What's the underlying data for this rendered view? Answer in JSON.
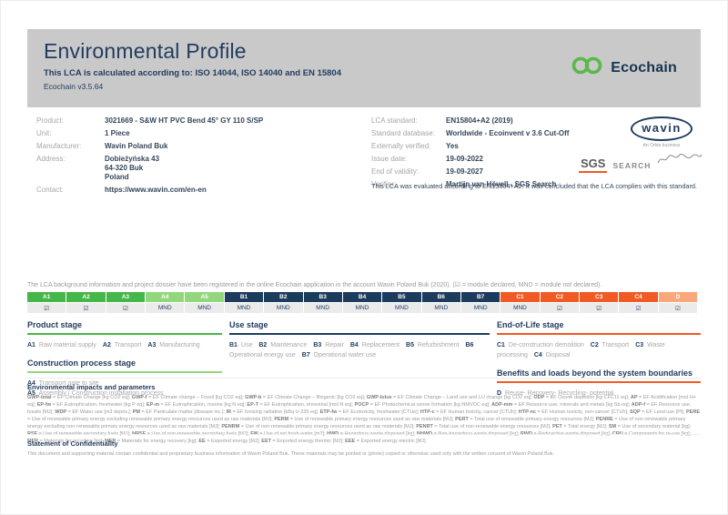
{
  "colors": {
    "green": "#45b649",
    "lightgreen": "#93d77d",
    "navy": "#1c3c5e",
    "orange": "#f15a24",
    "lightorange": "#f9a87c",
    "brand_navy": "#223c5f",
    "ecochain_green": "#5cb84b",
    "banner_gray": "#c9c9c9"
  },
  "header": {
    "title": "Environmental Profile",
    "subtitle": "This LCA is calculated according to: ISO 14044, ISO 14040 and EN 15804",
    "version": "Ecochain v3.5.64",
    "brand": "Ecochain"
  },
  "product_info": {
    "rows": [
      {
        "label": "Product:",
        "value": "3021669 - S&W HT PVC Bend 45° GY 110 S/SP"
      },
      {
        "label": "Unit:",
        "value": "1 Piece"
      },
      {
        "label": "Manufacturer:",
        "value": "Wavin Poland Buk"
      },
      {
        "label": "Address:",
        "value": "Dobieżyńska 43\n64-320 Buk\nPoland"
      },
      {
        "label": "Contact:",
        "value": "https://www.wavin.com/en-en"
      }
    ]
  },
  "lca_info": {
    "rows": [
      {
        "label": "LCA standard:",
        "value": "EN15804+A2 (2019)"
      },
      {
        "label": "Standard database:",
        "value": "Worldwide - Ecoinvent v 3.6 Cut-Off"
      },
      {
        "label": "Externally verified:",
        "value": "Yes"
      },
      {
        "label": "Issue date:",
        "value": "19-09-2022"
      },
      {
        "label": "End of validity:",
        "value": "19-09-2027"
      },
      {
        "label": "Verifier:",
        "value": "Martijn van Hövell - SGS Search"
      }
    ],
    "evaluation_note": "This LCA was evaluated according to EN15804+A2. It was concluded that the LCA complies with this standard."
  },
  "logos": {
    "wavin": "wavin",
    "wavin_tagline": "An Orbia business",
    "sgs": "SGS",
    "search": "SEARCH"
  },
  "registration_note": "The LCA background information and project dossier have been registered in the online Ecochain application in the account Wavin Poland Buk (2020). (☑ = module declared, MND = module not declared).",
  "module_table": {
    "columns": [
      {
        "code": "A1",
        "group": "green",
        "value": "☑"
      },
      {
        "code": "A2",
        "group": "green",
        "value": "☑"
      },
      {
        "code": "A3",
        "group": "green",
        "value": "☑"
      },
      {
        "code": "A4",
        "group": "lightgreen",
        "value": "MND"
      },
      {
        "code": "A5",
        "group": "lightgreen",
        "value": "MND"
      },
      {
        "code": "B1",
        "group": "navy",
        "value": "MND"
      },
      {
        "code": "B2",
        "group": "navy",
        "value": "MND"
      },
      {
        "code": "B3",
        "group": "navy",
        "value": "MND"
      },
      {
        "code": "B4",
        "group": "navy",
        "value": "MND"
      },
      {
        "code": "B5",
        "group": "navy",
        "value": "MND"
      },
      {
        "code": "B6",
        "group": "navy",
        "value": "MND"
      },
      {
        "code": "B7",
        "group": "navy",
        "value": "MND"
      },
      {
        "code": "C1",
        "group": "orange",
        "value": "MND"
      },
      {
        "code": "C2",
        "group": "orange",
        "value": "☑"
      },
      {
        "code": "C3",
        "group": "orange",
        "value": "☑"
      },
      {
        "code": "C4",
        "group": "orange",
        "value": "☑"
      },
      {
        "code": "D",
        "group": "lightorange",
        "value": "☑"
      }
    ]
  },
  "stages": {
    "product": {
      "title": "Product stage",
      "items": [
        {
          "code": "A1",
          "label": "Raw material supply"
        },
        {
          "code": "A2",
          "label": "Transport"
        },
        {
          "code": "A3",
          "label": "Manufacturing"
        }
      ]
    },
    "construction": {
      "title": "Construction process stage",
      "items": [
        {
          "code": "A4",
          "label": "Transport gate to site"
        },
        {
          "code": "A5",
          "label": "Assembly / Construction installation process"
        }
      ]
    },
    "use": {
      "title": "Use stage",
      "items": [
        {
          "code": "B1",
          "label": "Use"
        },
        {
          "code": "B2",
          "label": "Maintenance"
        },
        {
          "code": "B3",
          "label": "Repair"
        },
        {
          "code": "B4",
          "label": "Replacement"
        },
        {
          "code": "B5",
          "label": "Refurbishment"
        },
        {
          "code": "B6",
          "label": "Operational energy use"
        },
        {
          "code": "B7",
          "label": "Operational water use"
        }
      ]
    },
    "end_of_life": {
      "title": "End-of-Life stage",
      "items": [
        {
          "code": "C1",
          "label": "De-construction demolition"
        },
        {
          "code": "C2",
          "label": "Transport"
        },
        {
          "code": "C3",
          "label": "Waste processing"
        },
        {
          "code": "C4",
          "label": "Disposal"
        }
      ]
    },
    "benefits": {
      "title": "Benefits and loads beyond the system boundaries",
      "items": [
        {
          "code": "D",
          "label": "Reuse- Recovery- Recycling- potential"
        }
      ]
    }
  },
  "impacts": {
    "heading": "Environmental impacts and parameters",
    "text": "GWP-total = EF Climate Change [kg CO2 eq]; GWP-f = EF Climate change – Fossil [kg CO2 eq]; GWP-b = EF Climate Change – Biogenic [kg CO2 eq]; GWP-lulus = EF Climate Change – Land use and LU change [kg CO2 eq]; ODP = EF Ozone depletion [kg CFC11 eq]; AP = EF Acidification [mol H+ eq]; EP-fw = EF Eutrophication, freshwater [kg P eq]; EP-m = EF Eutrophication, marine [kg N eq]; EP-T = EF Eutrophication, terrestrial [mol N eq]; POCP = EF Photochemical ozone formation [kg NMVOC eq]; ADP-mm = EF Resource use, minerals and metals [kg Sb eq]; ADP-f = EF Resource use, fossils [MJ]; WDP = EF Water use [m3 depriv.]; PM = EF Particulate matter [disease inc.]; IR = EF Ionising radiation [kBq U-235 eq]; ETP-fw = EF Ecotoxicity, freshwater [CTUe]; HTP-c = EF Human toxicity, cancer [CTUh]; HTP-nc = EF Human toxicity, non-cancer [CTUh]; SQP = EF Land use [Pt]; PERE = Use of renewable primary energy excluding renewable primary energy resources used as raw materials [MJ]; PERM = Use of renewable primary energy resources used as raw materials [MJ]; PERT = Total use of renewable primary energy resources [MJ]; PENRE = Use of non renewable primary energy excluding non-renewable primary energy resources used as raw materials [MJ]; PENRM = Use of non-renewable primary energy resources used as raw materials [MJ]; PENRT = Total use of non-renewable energy resources [MJ]; PET = Total energy [MJ]; SM = Use of secondary material [kg]; RSF = Use of renewable secondary fuels [MJ]; NRSF = Use of non-renewable secondary fuels [MJ]; FW = Use of net fresh water [m3]; HWD = Hazardous waste disposed [kg]; NHWD = Non-hazardous waste disposed [kg]; RWD = Radioactive waste disposed [kg]; CRU = Components for re-use [kg]; MFR = Materials for recycling [kg]; MER = Materials for energy recovery [kg]; EE = Exported energy [MJ]; EET = Exported energy thermic [MJ]; EEE = Exported energy electric [MJ]"
  },
  "confidentiality": {
    "heading": "Statement of Confidentiality",
    "text": "This document and supporting material contain confidential and proprietary business information of Wavin Poland Buk. These materials may be printed or (photo) copied or otherwise used only with the written consent of Wavin Poland Buk."
  }
}
